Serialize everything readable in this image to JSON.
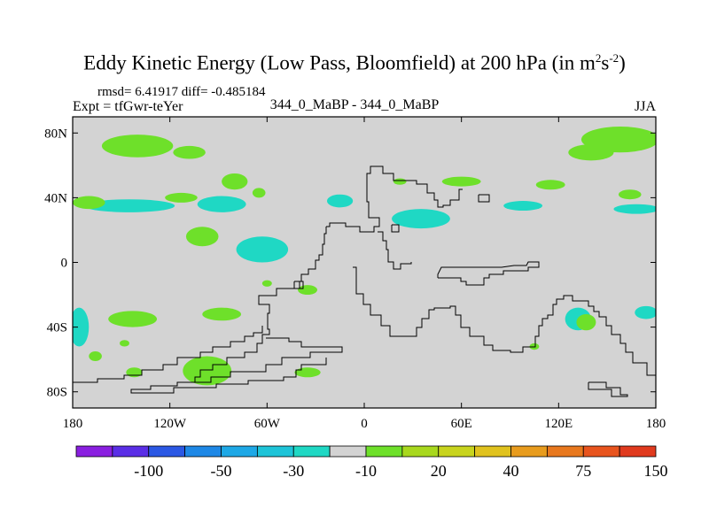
{
  "header": {
    "title_main": "Eddy Kinetic Energy (Low Pass, Bloomfield) at 200 hPa (in m",
    "title_sup1": "2",
    "title_mid": "s",
    "title_sup2": "-2",
    "title_end": ")",
    "rmsd_line": "rmsd= 6.41917 diff= -0.485184",
    "expt_line": "Expt = tfGwr-teYer",
    "panel_label": "344_0_MaBP - 344_0_MaBP",
    "season": "JJA"
  },
  "colors": {
    "background_field": "#d3d3d3",
    "negative_fill": "#1fd8c4",
    "positive_fill": "#6ee02a",
    "strong_positive_fill": "#a8d81e",
    "coastline": "#000000"
  },
  "chart_data": {
    "type": "heatmap",
    "title": "Eddy Kinetic Energy (Low Pass, Bloomfield) at 200 hPa (in m2s-2)",
    "xlabel": "",
    "ylabel": "",
    "xlim": [
      -180,
      180
    ],
    "ylim": [
      -90,
      90
    ],
    "x_ticks": [
      {
        "value": -180,
        "label": "180"
      },
      {
        "value": -120,
        "label": "120W"
      },
      {
        "value": -60,
        "label": "60W"
      },
      {
        "value": 0,
        "label": "0"
      },
      {
        "value": 60,
        "label": "60E"
      },
      {
        "value": 120,
        "label": "120E"
      },
      {
        "value": 180,
        "label": "180"
      }
    ],
    "y_ticks": [
      {
        "value": 80,
        "label": "80N"
      },
      {
        "value": 40,
        "label": "40N"
      },
      {
        "value": 0,
        "label": "0"
      },
      {
        "value": -40,
        "label": "40S"
      },
      {
        "value": -80,
        "label": "80S"
      }
    ],
    "colorbar": {
      "colors": [
        "#8a1fe0",
        "#5a2ee6",
        "#2b58e4",
        "#1e88e6",
        "#1ea8e6",
        "#1ec4d8",
        "#1fd8c4",
        "#d3d3d3",
        "#6ee02a",
        "#a8d81e",
        "#c8d41e",
        "#e0c21e",
        "#e89c1e",
        "#e8781e",
        "#e8541e",
        "#e03a1e"
      ],
      "labels": [
        {
          "after_box": 2,
          "text": "-100"
        },
        {
          "after_box": 4,
          "text": "-50"
        },
        {
          "after_box": 6,
          "text": "-30"
        },
        {
          "after_box": 8,
          "text": "-10"
        },
        {
          "after_box": 10,
          "text": "20"
        },
        {
          "after_box": 12,
          "text": "40"
        },
        {
          "after_box": 14,
          "text": "75"
        },
        {
          "after_box": 16,
          "text": "150"
        }
      ]
    },
    "regions": [
      {
        "level": "pos",
        "lon": -140,
        "lat": 72,
        "rlon": 22,
        "rlat": 7
      },
      {
        "level": "pos",
        "lon": -108,
        "lat": 68,
        "rlon": 10,
        "rlat": 4
      },
      {
        "level": "pos",
        "lon": -80,
        "lat": 50,
        "rlon": 8,
        "rlat": 5
      },
      {
        "level": "pos",
        "lon": -85,
        "lat": 51,
        "rlon": 2,
        "rlat": 2
      },
      {
        "level": "pos",
        "lon": -100,
        "lat": 16,
        "rlon": 10,
        "rlat": 6
      },
      {
        "level": "pos",
        "lon": -98,
        "lat": 16,
        "rlon": 4,
        "rlat": 3
      },
      {
        "level": "neg",
        "lon": -63,
        "lat": 8,
        "rlon": 16,
        "rlat": 8
      },
      {
        "level": "neg",
        "lon": -145,
        "lat": 35,
        "rlon": 28,
        "rlat": 4
      },
      {
        "level": "neg",
        "lon": -88,
        "lat": 36,
        "rlon": 15,
        "rlat": 5
      },
      {
        "level": "pos",
        "lon": -170,
        "lat": 37,
        "rlon": 10,
        "rlat": 4
      },
      {
        "level": "pos",
        "lon": -113,
        "lat": 40,
        "rlon": 10,
        "rlat": 3
      },
      {
        "level": "pos",
        "lon": -65,
        "lat": 43,
        "rlon": 4,
        "rlat": 3
      },
      {
        "level": "neg",
        "lon": -15,
        "lat": 38,
        "rlon": 8,
        "rlat": 4
      },
      {
        "level": "neg",
        "lon": 35,
        "lat": 27,
        "rlon": 18,
        "rlat": 6
      },
      {
        "level": "pos",
        "lon": 60,
        "lat": 50,
        "rlon": 12,
        "rlat": 3
      },
      {
        "level": "pos",
        "lon": 22,
        "lat": 50,
        "rlon": 4,
        "rlat": 2
      },
      {
        "level": "pos",
        "lon": 115,
        "lat": 48,
        "rlon": 9,
        "rlat": 3
      },
      {
        "level": "pos",
        "lon": 158,
        "lat": 76,
        "rlon": 24,
        "rlat": 8
      },
      {
        "level": "pos",
        "lon": 140,
        "lat": 68,
        "rlon": 14,
        "rlat": 5
      },
      {
        "level": "pos",
        "lon": 164,
        "lat": 42,
        "rlon": 7,
        "rlat": 3
      },
      {
        "level": "neg",
        "lon": 168,
        "lat": 33,
        "rlon": 14,
        "rlat": 3
      },
      {
        "level": "neg",
        "lon": 98,
        "lat": 35,
        "rlon": 12,
        "rlat": 3
      },
      {
        "level": "pos",
        "lon": -60,
        "lat": -13,
        "rlon": 3,
        "rlat": 2
      },
      {
        "level": "pos",
        "lon": -35,
        "lat": -17,
        "rlon": 6,
        "rlat": 3
      },
      {
        "level": "pos",
        "lon": -143,
        "lat": -35,
        "rlon": 15,
        "rlat": 5
      },
      {
        "level": "pos",
        "lon": -88,
        "lat": -32,
        "rlon": 12,
        "rlat": 4
      },
      {
        "level": "neg",
        "lon": -176,
        "lat": -40,
        "rlon": 6,
        "rlat": 12
      },
      {
        "level": "pos",
        "lon": -166,
        "lat": -58,
        "rlon": 4,
        "rlat": 3
      },
      {
        "level": "pos",
        "lon": -142,
        "lat": -68,
        "rlon": 5,
        "rlat": 3
      },
      {
        "level": "pos",
        "lon": -148,
        "lat": -50,
        "rlon": 3,
        "rlat": 2
      },
      {
        "level": "pos",
        "lon": -97,
        "lat": -67,
        "rlon": 15,
        "rlat": 9
      },
      {
        "level": "pos",
        "lon": -35,
        "lat": -68,
        "rlon": 8,
        "rlat": 3
      },
      {
        "level": "neg",
        "lon": 132,
        "lat": -35,
        "rlon": 8,
        "rlat": 7
      },
      {
        "level": "pos",
        "lon": 137,
        "lat": -37,
        "rlon": 6,
        "rlat": 5
      },
      {
        "level": "pos",
        "lon": 105,
        "lat": -52,
        "rlon": 3,
        "rlat": 2
      },
      {
        "level": "neg",
        "lon": 174,
        "lat": -31,
        "rlon": 7,
        "rlat": 4
      }
    ]
  }
}
